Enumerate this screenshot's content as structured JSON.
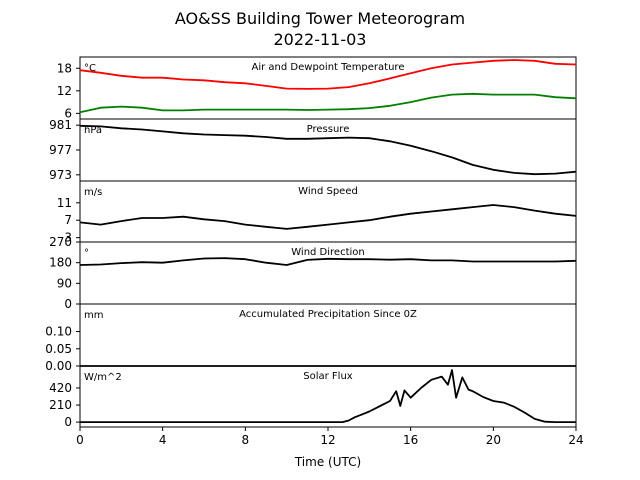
{
  "figure": {
    "title_line1": "AO&SS Building Tower Meteorogram",
    "title_line2": "2022-11-03",
    "xlabel": "Time (UTC)",
    "x_ticks": [
      0,
      4,
      8,
      12,
      16,
      20,
      24
    ],
    "xlim": [
      0,
      24
    ]
  },
  "chart_data": [
    {
      "type": "line",
      "title": "Air and Dewpoint Temperature",
      "unit": "°C",
      "ylim": [
        4.5,
        21
      ],
      "y_ticks": [
        6,
        12,
        18
      ],
      "series": [
        {
          "color": "#ff0000",
          "x": [
            0,
            1,
            2,
            3,
            4,
            5,
            6,
            7,
            8,
            9,
            10,
            11,
            12,
            13,
            14,
            15,
            16,
            17,
            18,
            19,
            20,
            21,
            22,
            23,
            24
          ],
          "values": [
            17.5,
            16.8,
            16,
            15.5,
            15.5,
            15,
            14.8,
            14.3,
            14,
            13.3,
            12.6,
            12.5,
            12.6,
            13,
            14,
            15.3,
            16.7,
            18,
            19,
            19.5,
            20,
            20.2,
            20,
            19.2,
            19
          ]
        },
        {
          "color": "#008000",
          "x": [
            0,
            1,
            2,
            3,
            4,
            5,
            6,
            7,
            8,
            9,
            10,
            11,
            12,
            13,
            14,
            15,
            16,
            17,
            18,
            19,
            20,
            21,
            22,
            23,
            24
          ],
          "values": [
            6.3,
            7.5,
            7.8,
            7.5,
            6.8,
            6.8,
            7,
            7,
            7,
            7,
            7,
            6.9,
            7,
            7.1,
            7.4,
            8,
            9,
            10.2,
            11,
            11.2,
            11,
            11,
            11,
            10.3,
            10
          ]
        }
      ]
    },
    {
      "type": "line",
      "title": "Pressure",
      "unit": "hPa",
      "ylim": [
        972,
        982
      ],
      "y_ticks": [
        973,
        977,
        981
      ],
      "series": [
        {
          "color": "#000000",
          "x": [
            0,
            1,
            2,
            3,
            4,
            5,
            6,
            7,
            8,
            9,
            10,
            11,
            12,
            13,
            14,
            15,
            16,
            17,
            18,
            19,
            20,
            21,
            22,
            23,
            24
          ],
          "values": [
            980.9,
            980.8,
            980.5,
            980.3,
            980,
            979.7,
            979.5,
            979.4,
            979.3,
            979.1,
            978.8,
            978.8,
            978.9,
            979,
            978.9,
            978.4,
            977.7,
            976.8,
            975.8,
            974.6,
            973.8,
            973.3,
            973.1,
            973.2,
            973.5
          ]
        }
      ]
    },
    {
      "type": "line",
      "title": "Wind Speed",
      "unit": "m/s",
      "ylim": [
        2,
        16
      ],
      "y_ticks": [
        3,
        7,
        11
      ],
      "series": [
        {
          "color": "#000000",
          "x": [
            0,
            1,
            2,
            3,
            4,
            5,
            6,
            7,
            8,
            9,
            10,
            11,
            12,
            13,
            14,
            15,
            16,
            17,
            18,
            19,
            20,
            21,
            22,
            23,
            24
          ],
          "values": [
            6.5,
            6,
            6.8,
            7.5,
            7.5,
            7.8,
            7.2,
            6.8,
            6,
            5.5,
            5,
            5.5,
            6,
            6.5,
            7,
            7.8,
            8.5,
            9,
            9.5,
            10,
            10.5,
            10,
            9.2,
            8.5,
            8
          ]
        }
      ]
    },
    {
      "type": "line",
      "title": "Wind Direction",
      "unit": "°",
      "ylim": [
        0,
        270
      ],
      "y_ticks": [
        0,
        90,
        180,
        270
      ],
      "series": [
        {
          "color": "#000000",
          "x": [
            0,
            1,
            2,
            3,
            4,
            5,
            6,
            7,
            8,
            9,
            10,
            11,
            12,
            13,
            14,
            15,
            16,
            17,
            18,
            19,
            20,
            21,
            22,
            23,
            24
          ],
          "values": [
            170,
            172,
            178,
            182,
            180,
            190,
            198,
            200,
            195,
            180,
            170,
            192,
            197,
            195,
            195,
            193,
            195,
            190,
            190,
            185,
            185,
            185,
            185,
            185,
            188
          ]
        }
      ]
    },
    {
      "type": "line",
      "title": "Accumulated Precipitation Since 0Z",
      "unit": "mm",
      "ylim": [
        0,
        0.18
      ],
      "y_ticks": [
        0.0,
        0.05,
        0.1
      ],
      "y_tick_labels": [
        "0.00",
        "0.05",
        "0.10"
      ],
      "series": [
        {
          "color": "#000000",
          "x": [
            0,
            24
          ],
          "values": [
            0,
            0
          ]
        }
      ]
    },
    {
      "type": "line",
      "title": "Solar Flux",
      "unit": "W/m^2",
      "ylim": [
        -60,
        690
      ],
      "y_ticks": [
        0,
        210,
        420
      ],
      "series": [
        {
          "color": "#000000",
          "x": [
            0,
            12.7,
            13,
            13.3,
            13.6,
            14,
            15,
            15.3,
            15.5,
            15.7,
            16,
            16.5,
            17,
            17.5,
            17.8,
            18,
            18.2,
            18.5,
            18.8,
            19,
            19.5,
            20,
            20.5,
            21,
            21.5,
            22,
            22.5,
            23,
            24
          ],
          "values": [
            0,
            0,
            20,
            60,
            90,
            130,
            260,
            380,
            200,
            390,
            300,
            420,
            520,
            560,
            460,
            640,
            300,
            550,
            400,
            380,
            310,
            260,
            240,
            190,
            120,
            40,
            5,
            0,
            0
          ]
        }
      ]
    }
  ]
}
